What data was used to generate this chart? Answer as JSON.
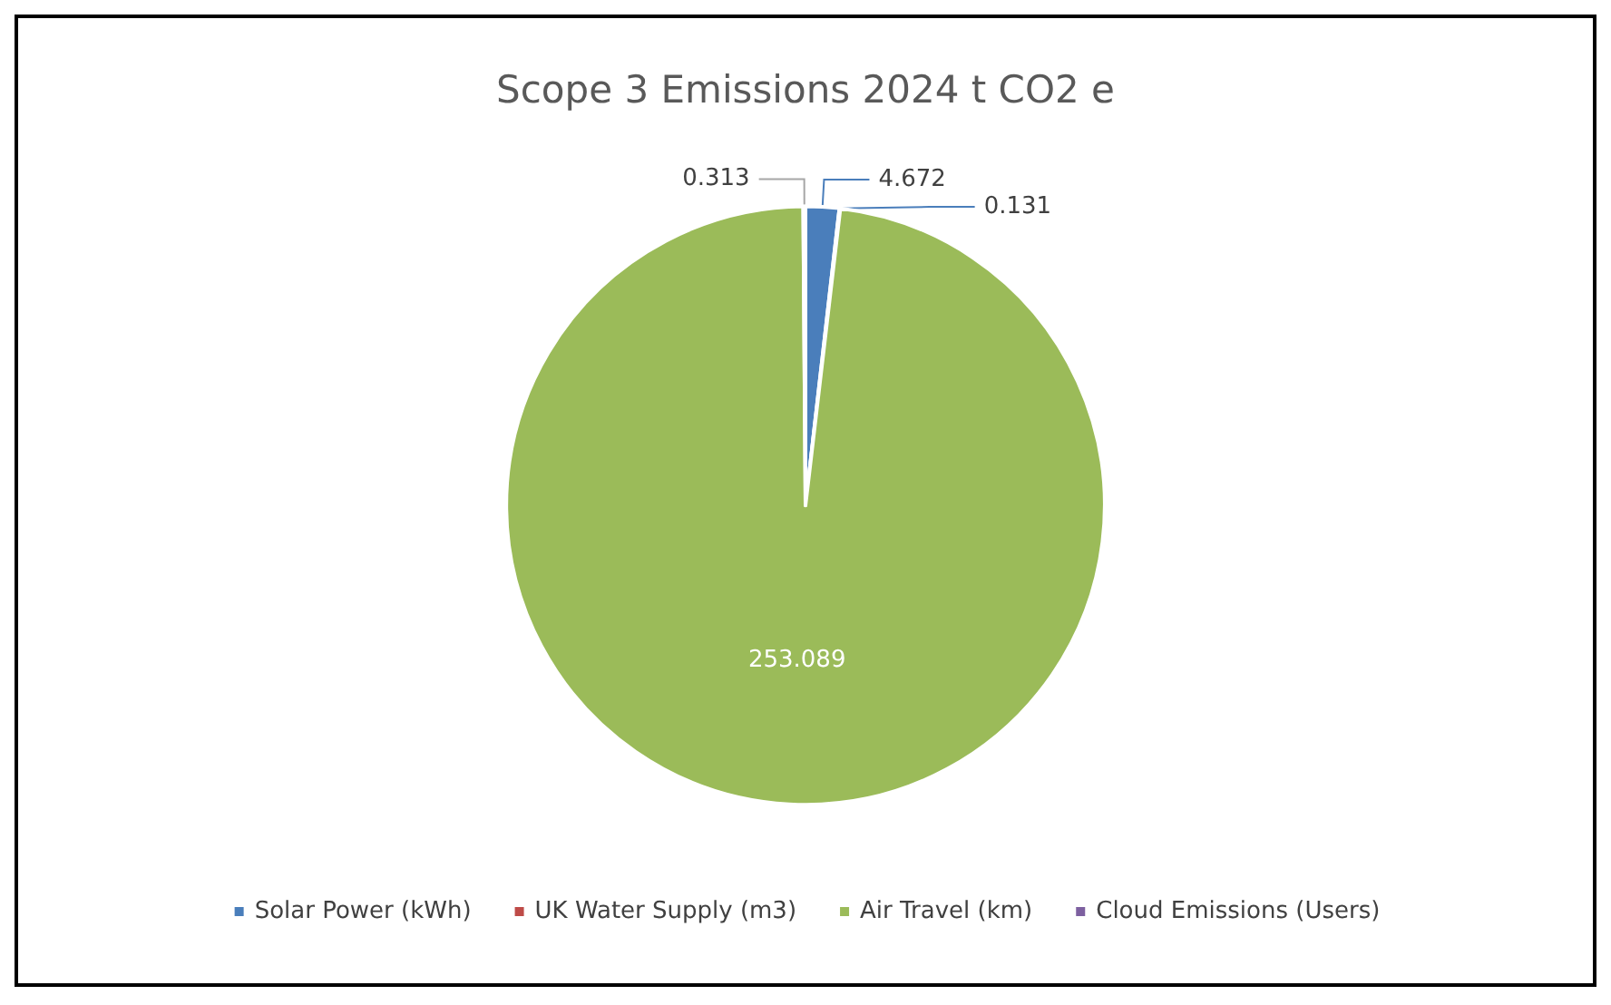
{
  "chart_data": {
    "type": "pie",
    "title": "Scope 3 Emissions 2024 t CO2 e",
    "categories": [
      "Solar Power (kWh)",
      "UK Water Supply (m3)",
      "Air Travel (km)",
      "Cloud Emissions (Users)"
    ],
    "values": [
      4.672,
      0.131,
      253.089,
      0.313
    ],
    "colors": [
      "#4a7ebb",
      "#be4b48",
      "#9bbb59",
      "#7d60a0"
    ],
    "data_labels": true,
    "legend": "bottom"
  }
}
